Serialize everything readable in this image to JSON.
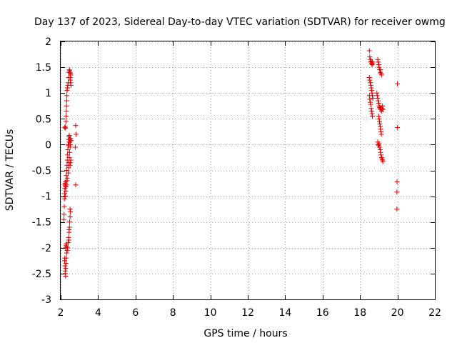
{
  "chart_data": {
    "type": "scatter",
    "title": "Day 137 of 2023, Sidereal Day-to-day VTEC variation (SDTVAR) for receiver owmg",
    "xlabel": "GPS time / hours",
    "ylabel": "SDTVAR / TECUs",
    "xlim": [
      2,
      22
    ],
    "ylim": [
      -3,
      2
    ],
    "xticks": [
      "2",
      "4",
      "6",
      "8",
      "10",
      "12",
      "14",
      "16",
      "18",
      "20",
      "22"
    ],
    "yticks": [
      "2",
      "1.5",
      "1",
      "0.5",
      "0",
      "-0.5",
      "-1",
      "-1.5",
      "-2",
      "-2.5",
      "-3"
    ],
    "grid": true,
    "marker": "plus",
    "color": "#e00000",
    "series": [
      {
        "name": "SDTVAR",
        "points": [
          [
            2.17,
            -1.45
          ],
          [
            2.18,
            -1.35
          ],
          [
            2.19,
            -1.2
          ],
          [
            2.2,
            -1.05
          ],
          [
            2.21,
            -0.95
          ],
          [
            2.22,
            -0.85
          ],
          [
            2.23,
            -0.78
          ],
          [
            2.24,
            -0.75
          ],
          [
            2.25,
            -0.8
          ],
          [
            2.26,
            -0.72
          ],
          [
            2.21,
            -2.25
          ],
          [
            2.22,
            -2.2
          ],
          [
            2.23,
            -2.35
          ],
          [
            2.24,
            -2.45
          ],
          [
            2.25,
            -2.5
          ],
          [
            2.26,
            -2.55
          ],
          [
            2.27,
            -2.4
          ],
          [
            2.28,
            -2.3
          ],
          [
            2.3,
            -2.2
          ],
          [
            2.32,
            -2.1
          ],
          [
            2.26,
            -2.0
          ],
          [
            2.28,
            -1.95
          ],
          [
            2.3,
            -1.92
          ],
          [
            2.32,
            -1.98
          ],
          [
            2.35,
            -2.05
          ],
          [
            2.37,
            -2.0
          ],
          [
            2.4,
            -1.9
          ],
          [
            2.42,
            -1.8
          ],
          [
            2.45,
            -1.7
          ],
          [
            2.47,
            -1.6
          ],
          [
            2.48,
            -1.5
          ],
          [
            2.5,
            -1.4
          ],
          [
            2.52,
            -1.3
          ],
          [
            2.5,
            -1.25
          ],
          [
            2.45,
            -1.65
          ],
          [
            2.43,
            -1.85
          ],
          [
            2.22,
            0.33
          ],
          [
            2.24,
            0.35
          ],
          [
            2.26,
            0.32
          ],
          [
            2.28,
            0.45
          ],
          [
            2.29,
            0.55
          ],
          [
            2.3,
            0.65
          ],
          [
            2.31,
            0.75
          ],
          [
            2.32,
            0.85
          ],
          [
            2.33,
            0.95
          ],
          [
            2.34,
            1.05
          ],
          [
            2.36,
            1.1
          ],
          [
            2.38,
            1.15
          ],
          [
            2.4,
            1.2
          ],
          [
            2.42,
            1.3
          ],
          [
            2.44,
            1.4
          ],
          [
            2.46,
            1.45
          ],
          [
            2.48,
            1.43
          ],
          [
            2.5,
            1.4
          ],
          [
            2.52,
            1.38
          ],
          [
            2.54,
            1.35
          ],
          [
            2.5,
            1.3
          ],
          [
            2.52,
            1.25
          ],
          [
            2.55,
            1.15
          ],
          [
            2.53,
            1.2
          ],
          [
            2.3,
            -0.6
          ],
          [
            2.32,
            -0.5
          ],
          [
            2.34,
            -0.4
          ],
          [
            2.35,
            -0.3
          ],
          [
            2.36,
            -0.2
          ],
          [
            2.38,
            -0.1
          ],
          [
            2.4,
            0.0
          ],
          [
            2.42,
            0.1
          ],
          [
            2.44,
            0.15
          ],
          [
            2.46,
            0.18
          ],
          [
            2.48,
            0.1
          ],
          [
            2.5,
            0.05
          ],
          [
            2.52,
            0.0
          ],
          [
            2.5,
            -0.05
          ],
          [
            2.48,
            -0.15
          ],
          [
            2.46,
            -0.25
          ],
          [
            2.44,
            -0.35
          ],
          [
            2.42,
            -0.45
          ],
          [
            2.4,
            -0.55
          ],
          [
            2.5,
            -0.4
          ],
          [
            2.52,
            -0.35
          ],
          [
            2.54,
            -0.3
          ],
          [
            2.52,
            0.12
          ],
          [
            2.55,
            0.08
          ],
          [
            2.45,
            0.05
          ],
          [
            2.42,
            -0.02
          ],
          [
            2.35,
            -0.65
          ],
          [
            2.33,
            -0.7
          ],
          [
            2.3,
            -0.78
          ],
          [
            2.28,
            -0.82
          ],
          [
            2.27,
            -0.9
          ],
          [
            2.25,
            -1.0
          ],
          [
            2.8,
            0.37
          ],
          [
            2.82,
            0.2
          ],
          [
            2.78,
            -0.05
          ],
          [
            2.8,
            -0.78
          ],
          [
            18.5,
            1.82
          ],
          [
            18.52,
            1.7
          ],
          [
            18.55,
            1.65
          ],
          [
            18.57,
            1.6
          ],
          [
            18.6,
            1.62
          ],
          [
            18.62,
            1.58
          ],
          [
            18.64,
            1.55
          ],
          [
            18.66,
            1.6
          ],
          [
            18.68,
            1.57
          ],
          [
            18.5,
            1.3
          ],
          [
            18.52,
            1.25
          ],
          [
            18.55,
            1.2
          ],
          [
            18.58,
            1.15
          ],
          [
            18.6,
            1.1
          ],
          [
            18.62,
            1.05
          ],
          [
            18.64,
            1.0
          ],
          [
            18.66,
            0.95
          ],
          [
            18.68,
            0.9
          ],
          [
            18.5,
            0.95
          ],
          [
            18.52,
            0.88
          ],
          [
            18.55,
            0.82
          ],
          [
            18.57,
            0.78
          ],
          [
            18.6,
            0.7
          ],
          [
            18.62,
            0.65
          ],
          [
            18.64,
            0.6
          ],
          [
            18.66,
            0.55
          ],
          [
            18.95,
            1.65
          ],
          [
            18.97,
            1.6
          ],
          [
            19.0,
            1.55
          ],
          [
            19.02,
            1.5
          ],
          [
            19.05,
            1.45
          ],
          [
            19.08,
            1.4
          ],
          [
            19.1,
            1.45
          ],
          [
            19.13,
            1.38
          ],
          [
            19.15,
            1.35
          ],
          [
            18.9,
            1.0
          ],
          [
            18.92,
            0.95
          ],
          [
            18.95,
            0.9
          ],
          [
            18.97,
            0.85
          ],
          [
            19.0,
            0.8
          ],
          [
            19.02,
            0.75
          ],
          [
            19.05,
            0.72
          ],
          [
            19.08,
            0.7
          ],
          [
            19.1,
            0.68
          ],
          [
            19.12,
            0.72
          ],
          [
            19.15,
            0.65
          ],
          [
            19.18,
            0.7
          ],
          [
            19.2,
            0.75
          ],
          [
            19.22,
            0.68
          ],
          [
            19.0,
            0.55
          ],
          [
            19.02,
            0.5
          ],
          [
            19.04,
            0.45
          ],
          [
            19.06,
            0.4
          ],
          [
            19.08,
            0.35
          ],
          [
            19.1,
            0.3
          ],
          [
            19.12,
            0.25
          ],
          [
            19.14,
            0.2
          ],
          [
            18.95,
            0.05
          ],
          [
            18.97,
            0.0
          ],
          [
            19.0,
            -0.02
          ],
          [
            19.02,
            0.02
          ],
          [
            19.05,
            -0.05
          ],
          [
            19.08,
            -0.1
          ],
          [
            19.1,
            -0.15
          ],
          [
            19.12,
            -0.2
          ],
          [
            19.15,
            -0.25
          ],
          [
            19.18,
            -0.28
          ],
          [
            19.2,
            -0.3
          ],
          [
            19.22,
            -0.33
          ],
          [
            20.0,
            1.18
          ],
          [
            20.0,
            0.33
          ],
          [
            19.98,
            -0.72
          ],
          [
            19.97,
            -0.92
          ],
          [
            19.97,
            -1.25
          ]
        ]
      }
    ]
  }
}
